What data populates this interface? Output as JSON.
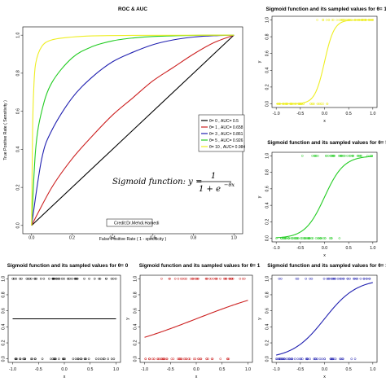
{
  "chart_data": [
    {
      "id": "roc",
      "type": "line",
      "title": "ROC & AUC",
      "xlabel": "False Positive Rate ( 1 - specificity )",
      "ylabel": "True Positive Rate ( Sensitivity )",
      "xlim": [
        0,
        1
      ],
      "ylim": [
        0,
        1
      ],
      "xticks": [
        "0.0",
        "0.2",
        "0.4",
        "0.6",
        "0.8",
        "1.0"
      ],
      "yticks": [
        "0.0",
        "0.2",
        "0.4",
        "0.6",
        "0.8",
        "1.0"
      ],
      "legend": {
        "placement": "right",
        "entries": [
          {
            "label": "θ= 0 , AUC= 0.5",
            "color": "#000000"
          },
          {
            "label": "θ= 1 , AUC= 0.658",
            "color": "#cc2020"
          },
          {
            "label": "θ= 3 , AUC= 0.861",
            "color": "#2020b0"
          },
          {
            "label": "θ= 5 , AUC= 0.926",
            "color": "#22cc22"
          },
          {
            "label": "θ= 10 , AUC= 0.984",
            "color": "#eeee22"
          }
        ]
      },
      "series": [
        {
          "name": "θ= 0 , AUC= 0.5",
          "theta": 0,
          "auc": 0.5,
          "color": "#000000",
          "x": [
            0,
            1
          ],
          "y": [
            0,
            1
          ]
        },
        {
          "name": "θ= 1 , AUC= 0.658",
          "theta": 1,
          "auc": 0.658,
          "color": "#cc2020",
          "x": [
            0,
            0.1,
            0.2,
            0.3,
            0.4,
            0.5,
            0.6,
            0.7,
            0.8,
            0.9,
            1.0
          ],
          "y": [
            0,
            0.2,
            0.35,
            0.47,
            0.58,
            0.67,
            0.76,
            0.83,
            0.9,
            0.96,
            1.0
          ]
        },
        {
          "name": "θ= 3 , AUC= 0.861",
          "theta": 3,
          "auc": 0.861,
          "color": "#2020b0",
          "x": [
            0,
            0.05,
            0.1,
            0.2,
            0.3,
            0.4,
            0.5,
            0.6,
            0.7,
            0.8,
            0.9,
            1.0
          ],
          "y": [
            0,
            0.35,
            0.5,
            0.67,
            0.78,
            0.86,
            0.91,
            0.95,
            0.975,
            0.99,
            0.997,
            1.0
          ]
        },
        {
          "name": "θ= 5 , AUC= 0.926",
          "theta": 5,
          "auc": 0.926,
          "color": "#22cc22",
          "x": [
            0,
            0.02,
            0.05,
            0.1,
            0.2,
            0.3,
            0.4,
            0.5,
            0.6,
            0.8,
            1.0
          ],
          "y": [
            0,
            0.4,
            0.6,
            0.75,
            0.88,
            0.94,
            0.97,
            0.985,
            0.993,
            0.999,
            1.0
          ]
        },
        {
          "name": "θ= 10 , AUC= 0.984",
          "theta": 10,
          "auc": 0.984,
          "color": "#eeee22",
          "x": [
            0,
            0.005,
            0.01,
            0.02,
            0.05,
            0.1,
            0.2,
            0.3,
            0.5,
            1.0
          ],
          "y": [
            0,
            0.5,
            0.7,
            0.85,
            0.94,
            0.975,
            0.99,
            0.996,
            0.999,
            1.0
          ]
        }
      ],
      "equation": {
        "lhs": "Sigmoid function: y =",
        "numerator": "1",
        "denominator": "1 + e",
        "exponent": "−θx"
      },
      "credit": "Credit:Dr.Mehdi.Hamedi"
    },
    {
      "id": "sig10",
      "type": "line",
      "theta": 10,
      "color": "#eeee22",
      "title": "Sigmoid function and its sampled values for θ= 10",
      "xlabel": "x",
      "ylabel": "y",
      "xlim": [
        -1,
        1
      ],
      "ylim": [
        0,
        1
      ],
      "xticks": [
        "-1.0",
        "-0.5",
        "0.0",
        "0.5",
        "1.0"
      ],
      "yticks": [
        "0.0",
        "0.2",
        "0.4",
        "0.6",
        "0.8",
        "1.0"
      ]
    },
    {
      "id": "sig5",
      "type": "line",
      "theta": 5,
      "color": "#22cc22",
      "title": "Sigmoid function and its sampled values for θ= 5",
      "xlabel": "x",
      "ylabel": "y",
      "xlim": [
        -1,
        1
      ],
      "ylim": [
        0,
        1
      ],
      "xticks": [
        "-1.0",
        "-0.5",
        "0.0",
        "0.5",
        "1.0"
      ],
      "yticks": [
        "0.0",
        "0.2",
        "0.4",
        "0.6",
        "0.8",
        "1.0"
      ]
    },
    {
      "id": "sig0",
      "type": "line",
      "theta": 0,
      "color": "#000000",
      "title": "Sigmoid function and its sampled values for θ= 0",
      "xlabel": "x",
      "ylabel": "y",
      "xlim": [
        -1,
        1
      ],
      "ylim": [
        0,
        1
      ],
      "xticks": [
        "-1.0",
        "-0.5",
        "0.0",
        "0.5",
        "1.0"
      ],
      "yticks": [
        "0.0",
        "0.2",
        "0.4",
        "0.6",
        "0.8",
        "1.0"
      ]
    },
    {
      "id": "sig1",
      "type": "line",
      "theta": 1,
      "color": "#cc2020",
      "title": "Sigmoid function and its sampled values for θ= 1",
      "xlabel": "x",
      "ylabel": "y",
      "xlim": [
        -1,
        1
      ],
      "ylim": [
        0,
        1
      ],
      "xticks": [
        "-1.0",
        "-0.5",
        "0.0",
        "0.5",
        "1.0"
      ],
      "yticks": [
        "0.0",
        "0.2",
        "0.4",
        "0.6",
        "0.8",
        "1.0"
      ]
    },
    {
      "id": "sig3",
      "type": "line",
      "theta": 3,
      "color": "#2020b0",
      "title": "Sigmoid function and its sampled values for θ= 3",
      "xlabel": "x",
      "ylabel": "y",
      "xlim": [
        -1,
        1
      ],
      "ylim": [
        0,
        1
      ],
      "xticks": [
        "-1.0",
        "-0.5",
        "0.0",
        "0.5",
        "1.0"
      ],
      "yticks": [
        "0.0",
        "0.2",
        "0.4",
        "0.6",
        "0.8",
        "1.0"
      ]
    }
  ]
}
